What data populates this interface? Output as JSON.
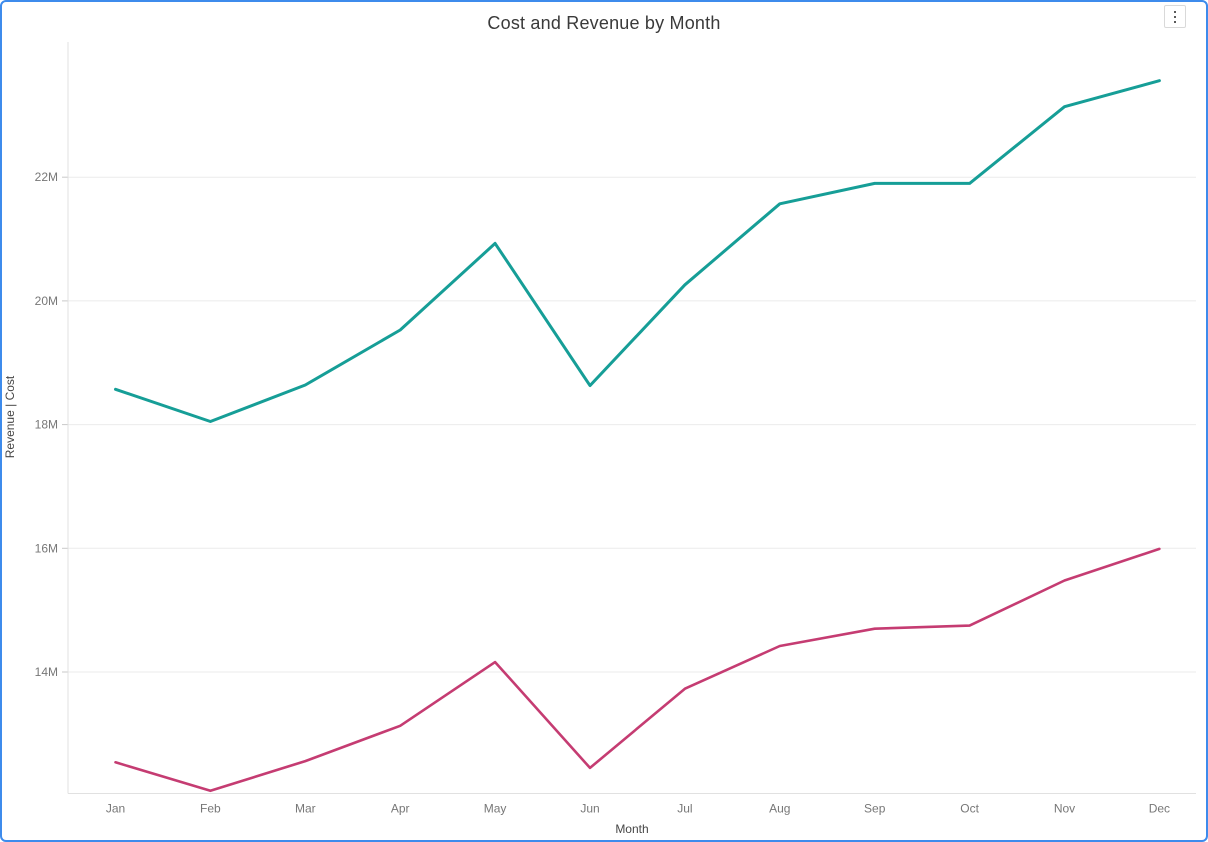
{
  "window": {
    "border_color": "#3d8bec",
    "background": "#ffffff"
  },
  "header": {
    "title": "Cost and Revenue by Month",
    "menu_icon": "vertical-ellipsis-icon"
  },
  "chart_data": {
    "type": "line",
    "title": "Cost and Revenue by Month",
    "xlabel": "Month",
    "ylabel": "Revenue  |  Cost",
    "categories": [
      "Jan",
      "Feb",
      "Mar",
      "Apr",
      "May",
      "Jun",
      "Jul",
      "Aug",
      "Sep",
      "Oct",
      "Nov",
      "Dec"
    ],
    "series": [
      {
        "name": "Revenue",
        "color": "#169e97",
        "values": [
          18.57,
          18.05,
          18.64,
          19.53,
          20.93,
          18.63,
          20.26,
          21.57,
          21.9,
          21.9,
          23.14,
          23.56
        ]
      },
      {
        "name": "Cost",
        "color": "#c53c72",
        "values": [
          12.54,
          12.08,
          12.56,
          13.13,
          14.16,
          12.45,
          13.73,
          14.42,
          14.7,
          14.75,
          15.48,
          15.99
        ]
      }
    ],
    "unit": "M",
    "y_ticks": [
      {
        "value": 14,
        "label": "14M"
      },
      {
        "value": 16,
        "label": "16M"
      },
      {
        "value": 18,
        "label": "18M"
      },
      {
        "value": 20,
        "label": "20M"
      },
      {
        "value": 22,
        "label": "22M"
      }
    ],
    "ylim": [
      12.04,
      24.19
    ],
    "grid": "horizontal",
    "legend": "none",
    "colors": {
      "gridline": "#ebebeb",
      "axis_line": "#e1e1e1",
      "tick_mark": "#c9c9c9",
      "tick_text": "#777777",
      "axis_title_text": "#464646",
      "title_text": "#3a3a3a"
    }
  }
}
